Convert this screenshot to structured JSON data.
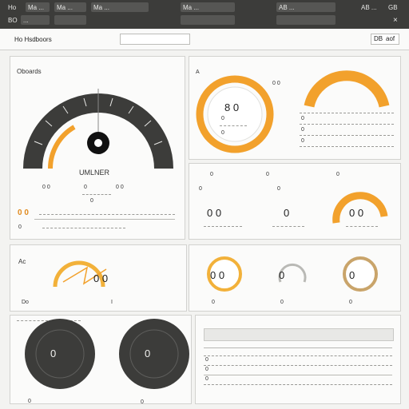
{
  "top_bar": {
    "item1": "Ho",
    "item2": "Ma ...",
    "item3": "Ma ...",
    "item4": "Ma ...",
    "item5": "Ma ...",
    "item6": "AB ...",
    "item7": "...",
    "item8": "AB ...",
    "item9": "GB"
  },
  "sub_bar": {
    "row1": "BO",
    "title": "Ho Hsdboors",
    "right_value": "DB",
    "right_label": "aof"
  },
  "speedometer": {
    "title": "Oboards",
    "label": "UMLNER",
    "row_left": "0 0",
    "row_mid": "0",
    "row_right": "0 0",
    "row2": "0",
    "badge": "0 0",
    "footer": "0"
  },
  "ring_gauge": {
    "label": "A",
    "value": "8 0",
    "sub": "0",
    "footer": "0"
  },
  "half_gauge": {
    "label": "0 0",
    "lines": [
      "0",
      "0",
      "0",
      "0",
      "0",
      "0"
    ]
  },
  "stats_row": {
    "col1_head": "0",
    "col2_head": "0",
    "col3_head": "0",
    "col1_sub": "0",
    "col1_value": "0 0",
    "col2_sub": "0",
    "col2_value": "0",
    "col3_value": "0 0"
  },
  "mini_gauges": {
    "title": "Ac",
    "g1_value": "0 0",
    "g1_label": "Do",
    "g1_footer": "I",
    "g2_value": "0 0",
    "g2_footer": "0",
    "g3_value": "0",
    "g3_footer": "0",
    "g4_value": "0",
    "g4_footer": "0"
  },
  "dark_dials": {
    "d1_value": "0",
    "d2_value": "0",
    "footer_left": "0",
    "footer_right": "0"
  },
  "table": {
    "rows": [
      "0",
      "0",
      "0",
      "0",
      "0"
    ]
  },
  "colors": {
    "accent": "#f2a12c",
    "accent_dark": "#d9781a",
    "dark": "#3c3c3a"
  }
}
